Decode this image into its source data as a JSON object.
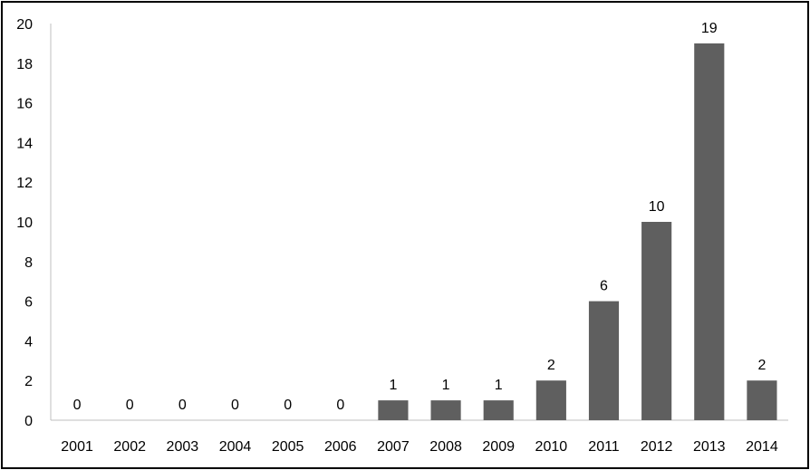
{
  "chart_data": {
    "type": "bar",
    "categories": [
      "2001",
      "2002",
      "2003",
      "2004",
      "2005",
      "2006",
      "2007",
      "2008",
      "2009",
      "2010",
      "2011",
      "2012",
      "2013",
      "2014"
    ],
    "values": [
      0,
      0,
      0,
      0,
      0,
      0,
      1,
      1,
      1,
      2,
      6,
      10,
      19,
      2
    ],
    "data_labels": [
      "0",
      "0",
      "0",
      "0",
      "0",
      "0",
      "1",
      "1",
      "1",
      "2",
      "6",
      "10",
      "19",
      "2"
    ],
    "title": "",
    "xlabel": "",
    "ylabel": "",
    "ylim": [
      0,
      20
    ],
    "yticks": [
      "0",
      "2",
      "4",
      "6",
      "8",
      "10",
      "12",
      "14",
      "16",
      "18",
      "20"
    ],
    "grid": false,
    "legend": "none",
    "bar_color": "#5f5f5f"
  }
}
